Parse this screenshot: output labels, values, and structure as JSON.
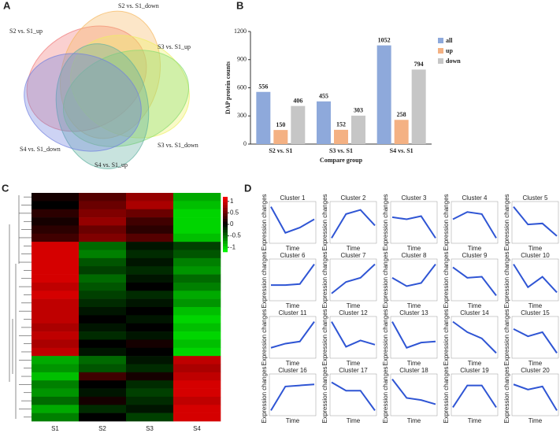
{
  "chart_data": [
    {
      "type": "venn",
      "panel": "A",
      "sets": [
        {
          "name": "S2 vs. S1_up",
          "color": "#f07878"
        },
        {
          "name": "S2 vs. S1_down",
          "color": "#f5b860"
        },
        {
          "name": "S3 vs. S1_up",
          "color": "#eef060"
        },
        {
          "name": "S3 vs. S1_down",
          "color": "#88dd70"
        },
        {
          "name": "S4 vs. S1_up",
          "color": "#60b0a0"
        },
        {
          "name": "S4 vs. S1_down",
          "color": "#7080e0"
        }
      ]
    },
    {
      "type": "bar",
      "panel": "B",
      "y_label": "DAP protein counts",
      "x_label": "Compare group",
      "categories": [
        "S2 vs. S1",
        "S3 vs. S1",
        "S4 vs. S1"
      ],
      "series": [
        {
          "name": "all",
          "color": "#8ea9db",
          "values": [
            556,
            455,
            1052
          ]
        },
        {
          "name": "up",
          "color": "#f4b183",
          "values": [
            150,
            152,
            258
          ]
        },
        {
          "name": "down",
          "color": "#c6c6c6",
          "values": [
            406,
            303,
            794
          ]
        }
      ],
      "ylim": [
        0,
        1200
      ],
      "yticks": [
        0,
        300,
        600,
        900,
        1200
      ]
    },
    {
      "type": "heatmap",
      "panel": "C",
      "columns": [
        "S1",
        "S2",
        "S3",
        "S4"
      ],
      "clim": [
        -1.2,
        1.2
      ],
      "cticks": [
        1,
        0.5,
        0,
        -0.5,
        -1
      ],
      "values": [
        [
          0.1,
          0.4,
          0.7,
          -0.8
        ],
        [
          0,
          0.5,
          0.8,
          -0.9
        ],
        [
          0.2,
          0.6,
          0.5,
          -1
        ],
        [
          0.1,
          0.7,
          0.3,
          -1
        ],
        [
          0.2,
          0.5,
          0.2,
          -1
        ],
        [
          0.3,
          0.6,
          0.4,
          -0.9
        ],
        [
          1,
          -0.5,
          -0.1,
          -0.3
        ],
        [
          1,
          -0.6,
          -0.2,
          -0.4
        ],
        [
          1,
          -0.4,
          -0.1,
          -0.6
        ],
        [
          1,
          -0.3,
          -0.2,
          -0.7
        ],
        [
          1,
          -0.5,
          -0.1,
          -0.5
        ],
        [
          0.9,
          -0.4,
          0,
          -0.6
        ],
        [
          1,
          -0.3,
          -0.2,
          -0.8
        ],
        [
          0.9,
          -0.2,
          -0.1,
          -0.7
        ],
        [
          0.9,
          -0.1,
          0,
          -0.9
        ],
        [
          0.9,
          0,
          -0.1,
          -1
        ],
        [
          0.8,
          -0.1,
          0,
          -0.9
        ],
        [
          0.9,
          -0.2,
          -0.1,
          -1
        ],
        [
          0.8,
          0,
          0.1,
          -0.9
        ],
        [
          0.9,
          -0.1,
          0,
          -1
        ],
        [
          -0.8,
          -0.5,
          -0.1,
          0.9
        ],
        [
          -0.7,
          -0.4,
          -0.2,
          0.8
        ],
        [
          -0.9,
          0.3,
          0.1,
          0.9
        ],
        [
          -0.6,
          0,
          -0.2,
          1
        ],
        [
          -0.7,
          -0.1,
          -0.3,
          1
        ],
        [
          -0.5,
          0.1,
          -0.2,
          0.9
        ],
        [
          -0.8,
          -0.2,
          -0.1,
          1
        ],
        [
          -0.6,
          0,
          -0.3,
          1
        ]
      ]
    },
    {
      "type": "line",
      "panel": "D",
      "color": "#2f55d4",
      "x_label": "Time",
      "y_label": "Expression changes",
      "ylim": [
        -2,
        2
      ],
      "panels": [
        {
          "title": "Cluster 1",
          "values": [
            1.5,
            -1,
            -0.5,
            0.3
          ]
        },
        {
          "title": "Cluster 2",
          "values": [
            -1.5,
            0.8,
            1.2,
            -0.3
          ]
        },
        {
          "title": "Cluster 3",
          "values": [
            0.5,
            0.3,
            0.6,
            -1.5
          ]
        },
        {
          "title": "Cluster 4",
          "values": [
            0.3,
            1,
            0.8,
            -1.5
          ]
        },
        {
          "title": "Cluster 5",
          "values": [
            1.5,
            -0.2,
            -0.1,
            -1.3
          ]
        },
        {
          "title": "Cluster 6",
          "values": [
            -0.5,
            -0.5,
            -0.4,
            1.5
          ]
        },
        {
          "title": "Cluster 7",
          "values": [
            -1.3,
            -0.2,
            0.2,
            1.5
          ]
        },
        {
          "title": "Cluster 8",
          "values": [
            0.2,
            -0.6,
            -0.3,
            1.5
          ]
        },
        {
          "title": "Cluster 9",
          "values": [
            1.2,
            0.2,
            0.3,
            -1.5
          ]
        },
        {
          "title": "Cluster 10",
          "values": [
            1.5,
            -0.7,
            0.3,
            -1.2
          ]
        },
        {
          "title": "Cluster 11",
          "values": [
            -1,
            -0.6,
            -0.4,
            1.5
          ]
        },
        {
          "title": "Cluster 12",
          "values": [
            1.5,
            -0.9,
            -0.3,
            -0.7
          ]
        },
        {
          "title": "Cluster 13",
          "values": [
            1.5,
            -1,
            -0.5,
            -0.4
          ]
        },
        {
          "title": "Cluster 14",
          "values": [
            1.5,
            0.5,
            -0.1,
            -1.5
          ]
        },
        {
          "title": "Cluster 15",
          "values": [
            0.8,
            0.1,
            0.5,
            -1.5
          ]
        },
        {
          "title": "Cluster 16",
          "values": [
            -1.5,
            0.8,
            0.9,
            1
          ]
        },
        {
          "title": "Cluster 17",
          "values": [
            1.2,
            0.4,
            0.4,
            -1.5
          ]
        },
        {
          "title": "Cluster 18",
          "values": [
            1.5,
            -0.3,
            -0.5,
            -0.9
          ]
        },
        {
          "title": "Cluster 19",
          "values": [
            -1.2,
            0.9,
            0.9,
            -1.2
          ]
        },
        {
          "title": "Cluster 20",
          "values": [
            1,
            0.5,
            0.8,
            -1.5
          ]
        }
      ]
    }
  ]
}
